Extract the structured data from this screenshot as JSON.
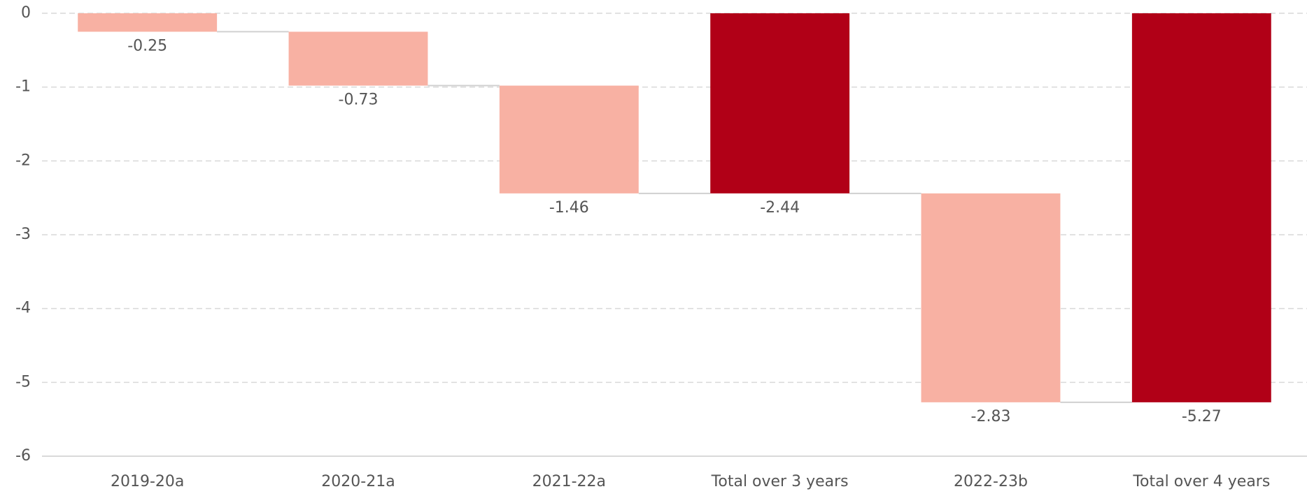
{
  "chart_data": {
    "type": "waterfall",
    "categories": [
      "2019-20a",
      "2020-21a",
      "2021-22a",
      "Total over 3 years",
      "2022-23b",
      "Total over 4 years"
    ],
    "values": [
      -0.25,
      -0.73,
      -1.46,
      -2.44,
      -2.83,
      -5.27
    ],
    "is_total": [
      false,
      false,
      false,
      true,
      false,
      true
    ],
    "colors": {
      "change": "#f8b1a3",
      "total": "#b10017"
    },
    "ylim": [
      -6,
      0
    ],
    "yticks": [
      0,
      -1,
      -2,
      -3,
      -4,
      -5,
      -6
    ],
    "grid": true
  }
}
